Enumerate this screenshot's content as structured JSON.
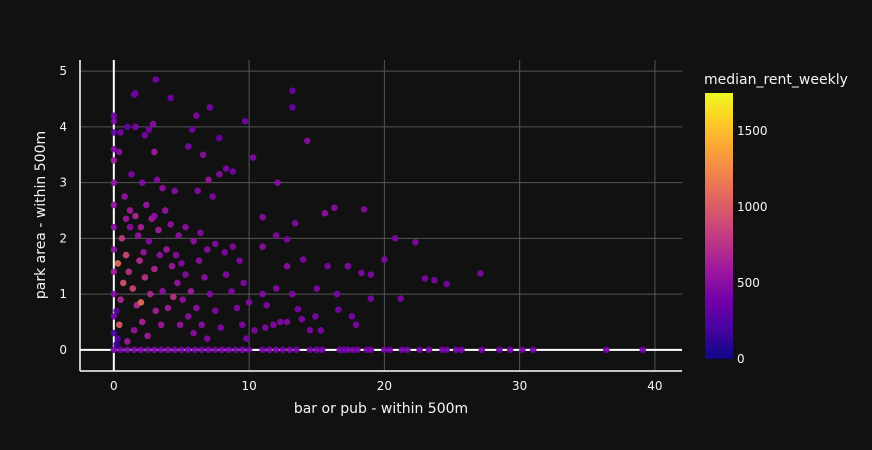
{
  "chart_data": {
    "type": "scatter",
    "title": "",
    "xlabel": "bar or pub - within 500m",
    "ylabel": "park area - within 500m",
    "xlim": [
      -2.5,
      42
    ],
    "ylim": [
      -0.38,
      5.2
    ],
    "x_ticks": [
      0,
      10,
      20,
      30,
      40
    ],
    "y_ticks": [
      0,
      1,
      2,
      3,
      4,
      5
    ],
    "grid": true,
    "colorbar": {
      "title": "median_rent_weekly",
      "range": [
        0,
        1750
      ],
      "ticks": [
        0,
        500,
        1000,
        1500
      ],
      "colorscale": [
        "#0d0887",
        "#46039f",
        "#7201a8",
        "#9c179e",
        "#bd3786",
        "#d8576b",
        "#ed7953",
        "#fb9f3a",
        "#fdca26",
        "#f0f921"
      ]
    },
    "series": [
      {
        "points": [
          [
            0,
            4.2,
            380
          ],
          [
            0,
            4.1,
            420
          ],
          [
            0,
            3.9,
            300
          ],
          [
            0,
            3.6,
            450
          ],
          [
            0,
            3.4,
            600
          ],
          [
            0,
            3.0,
            500
          ],
          [
            0,
            2.6,
            550
          ],
          [
            0,
            2.2,
            480
          ],
          [
            0,
            1.8,
            520
          ],
          [
            0,
            1.4,
            600
          ],
          [
            0,
            1.0,
            450
          ],
          [
            0,
            0.6,
            380
          ],
          [
            0,
            0.3,
            200
          ],
          [
            0,
            0,
            400
          ],
          [
            0.4,
            3.55,
            500
          ],
          [
            0.5,
            3.9,
            400
          ],
          [
            1,
            4.0,
            350
          ],
          [
            1.6,
            4.0,
            450
          ],
          [
            1.5,
            4.58,
            400
          ],
          [
            1.6,
            4.6,
            380
          ],
          [
            3.1,
            4.85,
            400
          ],
          [
            4.2,
            4.52,
            380
          ],
          [
            2.3,
            3.85,
            420
          ],
          [
            2.6,
            3.95,
            400
          ],
          [
            2.9,
            4.05,
            500
          ],
          [
            3.0,
            3.55,
            600
          ],
          [
            1.3,
            3.15,
            450
          ],
          [
            2.1,
            3.0,
            480
          ],
          [
            3.2,
            3.05,
            470
          ],
          [
            3.6,
            2.9,
            520
          ],
          [
            4.5,
            2.85,
            500
          ],
          [
            5.5,
            3.65,
            450
          ],
          [
            6.1,
            4.2,
            450
          ],
          [
            5.8,
            3.95,
            400
          ],
          [
            7.1,
            4.35,
            420
          ],
          [
            7.8,
            3.8,
            380
          ],
          [
            9.7,
            4.1,
            400
          ],
          [
            6.6,
            3.5,
            500
          ],
          [
            7.0,
            3.05,
            550
          ],
          [
            7.8,
            3.15,
            500
          ],
          [
            8.3,
            3.25,
            450
          ],
          [
            8.8,
            3.2,
            400
          ],
          [
            10.3,
            3.45,
            450
          ],
          [
            12.1,
            3.0,
            500
          ],
          [
            13.2,
            4.65,
            380
          ],
          [
            13.2,
            4.35,
            360
          ],
          [
            14.3,
            3.75,
            500
          ],
          [
            6.2,
            2.85,
            480
          ],
          [
            7.3,
            2.75,
            460
          ],
          [
            11.0,
            2.38,
            500
          ],
          [
            13.4,
            2.27,
            480
          ],
          [
            15.6,
            2.45,
            520
          ],
          [
            16.3,
            2.55,
            500
          ],
          [
            18.5,
            2.52,
            480
          ],
          [
            12.0,
            2.05,
            470
          ],
          [
            12.8,
            1.98,
            450
          ],
          [
            11.0,
            1.85,
            500
          ],
          [
            14.0,
            1.62,
            460
          ],
          [
            12.8,
            1.5,
            500
          ],
          [
            15.8,
            1.5,
            450
          ],
          [
            17.3,
            1.5,
            480
          ],
          [
            19.0,
            1.35,
            460
          ],
          [
            18.3,
            1.38,
            470
          ],
          [
            20.0,
            1.62,
            480
          ],
          [
            20.8,
            2.0,
            450
          ],
          [
            22.3,
            1.93,
            460
          ],
          [
            23.0,
            1.28,
            440
          ],
          [
            23.7,
            1.25,
            430
          ],
          [
            24.6,
            1.18,
            420
          ],
          [
            27.1,
            1.37,
            450
          ],
          [
            21.2,
            0.92,
            440
          ],
          [
            19.0,
            0.92,
            430
          ],
          [
            16.5,
            1.0,
            420
          ],
          [
            15.0,
            1.1,
            450
          ],
          [
            13.2,
            1.0,
            460
          ],
          [
            12.0,
            1.1,
            470
          ],
          [
            11.0,
            1.0,
            480
          ],
          [
            11.3,
            0.8,
            450
          ],
          [
            10.0,
            0.85,
            470
          ],
          [
            13.6,
            0.73,
            440
          ],
          [
            16.6,
            0.72,
            430
          ],
          [
            17.6,
            0.6,
            420
          ],
          [
            17.9,
            0.45,
            430
          ],
          [
            14.9,
            0.6,
            440
          ],
          [
            13.9,
            0.55,
            450
          ],
          [
            12.8,
            0.5,
            460
          ],
          [
            12.3,
            0.5,
            460
          ],
          [
            11.8,
            0.45,
            480
          ],
          [
            11.2,
            0.4,
            470
          ],
          [
            10.4,
            0.35,
            460
          ],
          [
            14.5,
            0.35,
            440
          ],
          [
            15.3,
            0.35,
            430
          ],
          [
            0.8,
            2.75,
            550
          ],
          [
            1.2,
            2.5,
            600
          ],
          [
            1.6,
            2.4,
            700
          ],
          [
            2.0,
            2.2,
            650
          ],
          [
            2.4,
            2.6,
            560
          ],
          [
            2.8,
            2.35,
            600
          ],
          [
            3.3,
            2.15,
            620
          ],
          [
            3.8,
            2.5,
            560
          ],
          [
            4.2,
            2.25,
            540
          ],
          [
            4.8,
            2.05,
            520
          ],
          [
            5.3,
            2.2,
            500
          ],
          [
            5.9,
            1.95,
            520
          ],
          [
            6.4,
            2.1,
            480
          ],
          [
            6.9,
            1.8,
            500
          ],
          [
            7.5,
            1.9,
            480
          ],
          [
            8.2,
            1.75,
            460
          ],
          [
            8.8,
            1.85,
            470
          ],
          [
            9.3,
            1.6,
            460
          ],
          [
            9.6,
            1.2,
            450
          ],
          [
            0.6,
            2.0,
            800
          ],
          [
            0.9,
            1.7,
            900
          ],
          [
            1.1,
            1.4,
            750
          ],
          [
            1.4,
            1.1,
            850
          ],
          [
            1.7,
            0.8,
            700
          ],
          [
            2.1,
            0.5,
            650
          ],
          [
            2.5,
            0.25,
            600
          ],
          [
            0.7,
            1.2,
            950
          ],
          [
            0.5,
            0.9,
            700
          ],
          [
            1.9,
            1.6,
            720
          ],
          [
            2.3,
            1.3,
            760
          ],
          [
            2.7,
            1.0,
            680
          ],
          [
            3.1,
            0.7,
            640
          ],
          [
            3.5,
            0.45,
            600
          ],
          [
            3.9,
            1.8,
            620
          ],
          [
            4.3,
            1.5,
            580
          ],
          [
            4.7,
            1.2,
            560
          ],
          [
            5.1,
            0.9,
            540
          ],
          [
            5.5,
            0.6,
            520
          ],
          [
            5.9,
            0.3,
            500
          ],
          [
            6.3,
            1.6,
            520
          ],
          [
            6.7,
            1.3,
            500
          ],
          [
            7.1,
            1.0,
            480
          ],
          [
            7.5,
            0.7,
            470
          ],
          [
            7.9,
            0.4,
            460
          ],
          [
            8.3,
            1.35,
            470
          ],
          [
            8.7,
            1.05,
            460
          ],
          [
            9.1,
            0.75,
            450
          ],
          [
            9.5,
            0.45,
            440
          ],
          [
            9.8,
            0.2,
            430
          ],
          [
            0.3,
            1.55,
            1100
          ],
          [
            0.4,
            0.45,
            1000
          ],
          [
            1.0,
            0.15,
            600
          ],
          [
            1.5,
            0.35,
            550
          ],
          [
            2.0,
            0.85,
            1100
          ],
          [
            2.6,
            1.95,
            480
          ],
          [
            3.0,
            1.45,
            700
          ],
          [
            3.6,
            1.05,
            520
          ],
          [
            4.0,
            0.75,
            600
          ],
          [
            4.4,
            0.95,
            750
          ],
          [
            4.9,
            0.45,
            560
          ],
          [
            5.3,
            1.35,
            480
          ],
          [
            5.7,
            1.05,
            600
          ],
          [
            6.1,
            0.75,
            520
          ],
          [
            6.5,
            0.45,
            500
          ],
          [
            6.9,
            0.2,
            480
          ],
          [
            1.2,
            2.2,
            520
          ],
          [
            1.8,
            2.05,
            540
          ],
          [
            2.2,
            1.75,
            560
          ],
          [
            0.9,
            2.35,
            580
          ],
          [
            3.4,
            1.7,
            520
          ],
          [
            4.6,
            1.7,
            500
          ],
          [
            5.0,
            1.55,
            480
          ],
          [
            3.0,
            2.4,
            520
          ],
          [
            0.2,
            0.1,
            180
          ],
          [
            0.3,
            0.2,
            250
          ],
          [
            0.2,
            0.7,
            300
          ],
          [
            0.5,
            0,
            400
          ],
          [
            1,
            0,
            420
          ],
          [
            1.5,
            0,
            450
          ],
          [
            2,
            0,
            430
          ],
          [
            2.5,
            0,
            440
          ],
          [
            3,
            0,
            450
          ],
          [
            3.5,
            0,
            430
          ],
          [
            4,
            0,
            440
          ],
          [
            4.5,
            0,
            430
          ],
          [
            5,
            0,
            420
          ],
          [
            5.5,
            0,
            430
          ],
          [
            6,
            0,
            420
          ],
          [
            6.5,
            0,
            410
          ],
          [
            7,
            0,
            420
          ],
          [
            7.5,
            0,
            410
          ],
          [
            8,
            0,
            430
          ],
          [
            8.5,
            0,
            420
          ],
          [
            9,
            0,
            410
          ],
          [
            9.5,
            0,
            420
          ],
          [
            10,
            0,
            410
          ],
          [
            11,
            0,
            400
          ],
          [
            11.5,
            0,
            420
          ],
          [
            12,
            0,
            410
          ],
          [
            12.5,
            0,
            400
          ],
          [
            13,
            0,
            410
          ],
          [
            13.5,
            0,
            400
          ],
          [
            14.5,
            0,
            400
          ],
          [
            15,
            0,
            410
          ],
          [
            15.4,
            0,
            400
          ],
          [
            16.7,
            0,
            410
          ],
          [
            17,
            0,
            400
          ],
          [
            17.3,
            0,
            400
          ],
          [
            17.7,
            0,
            410
          ],
          [
            18,
            0,
            400
          ],
          [
            18.7,
            0,
            400
          ],
          [
            19,
            0,
            410
          ],
          [
            20,
            0,
            400
          ],
          [
            20.4,
            0,
            400
          ],
          [
            21.3,
            0,
            410
          ],
          [
            21.7,
            0,
            400
          ],
          [
            22.6,
            0,
            400
          ],
          [
            23.3,
            0,
            410
          ],
          [
            24.3,
            0,
            400
          ],
          [
            24.6,
            0,
            400
          ],
          [
            25.3,
            0,
            400
          ],
          [
            25.7,
            0,
            410
          ],
          [
            27.2,
            0,
            400
          ],
          [
            28.5,
            0,
            400
          ],
          [
            29.3,
            0,
            410
          ],
          [
            30.2,
            0,
            400
          ],
          [
            31.0,
            0,
            400
          ],
          [
            36.4,
            0,
            410
          ],
          [
            39.1,
            0,
            400
          ]
        ]
      }
    ]
  }
}
